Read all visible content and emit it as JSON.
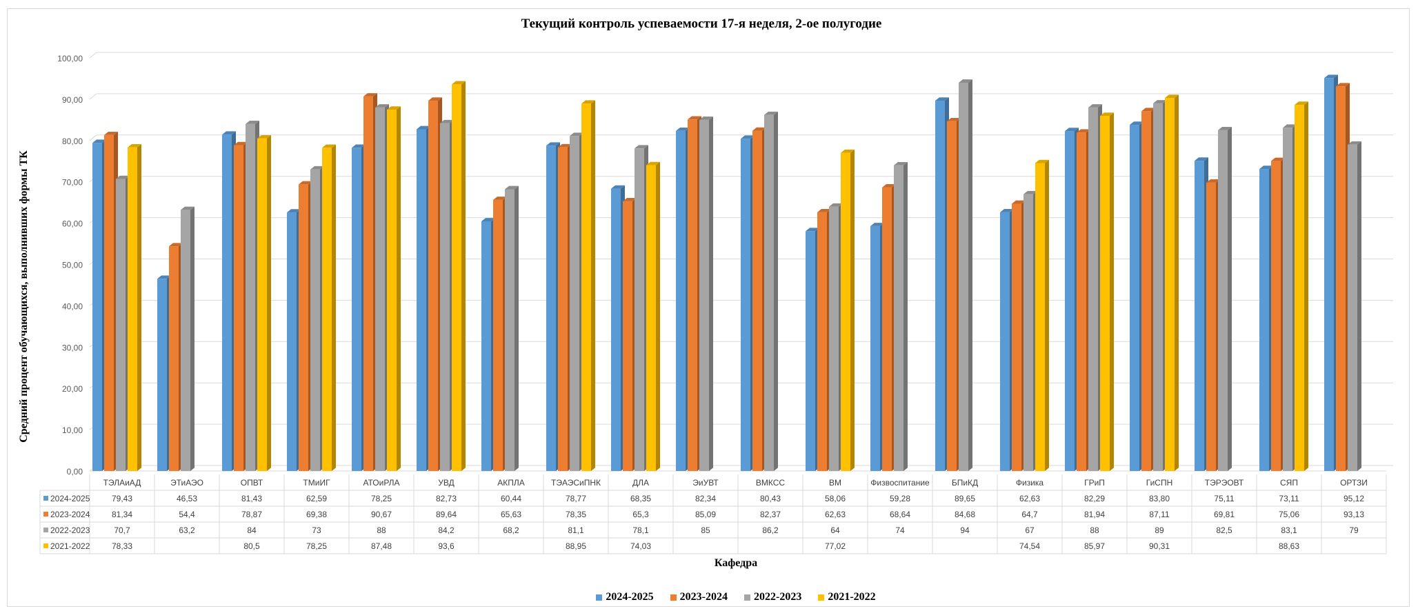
{
  "chart_data": {
    "type": "bar",
    "title": "Текущий контроль успеваемости 17-я неделя, 2-ое полугодие",
    "xlabel": "Кафедра",
    "ylabel": "Средний процент обучающихся, выполнивших формы ТК",
    "ylim": [
      0,
      100
    ],
    "ytick_step": 10,
    "ytick_labels": [
      "0,00",
      "10,00",
      "20,00",
      "30,00",
      "40,00",
      "50,00",
      "60,00",
      "70,00",
      "80,00",
      "90,00",
      "100,00"
    ],
    "grid": true,
    "legend_position": "bottom",
    "has_data_table": true,
    "categories": [
      "ТЭЛАиАД",
      "ЭТиАЭО",
      "ОПВТ",
      "ТМиИГ",
      "АТОиРЛА",
      "УВД",
      "АКПЛА",
      "ТЭАЭСиПНК",
      "ДЛА",
      "ЭиУВТ",
      "ВМКСС",
      "ВМ",
      "Физвоспитание",
      "БПиКД",
      "Физика",
      "ГРиП",
      "ГиСПН",
      "ТЭРЭОВТ",
      "СЯП",
      "ОРТЗИ"
    ],
    "series": [
      {
        "name": "2024-2025",
        "color": "#5b9bd5",
        "values": [
          79.43,
          46.53,
          81.43,
          62.59,
          78.25,
          82.73,
          60.44,
          78.77,
          68.35,
          82.34,
          80.43,
          58.06,
          59.28,
          89.65,
          62.63,
          82.29,
          83.8,
          75.11,
          73.11,
          95.12
        ],
        "labels": [
          "79,43",
          "46,53",
          "81,43",
          "62,59",
          "78,25",
          "82,73",
          "60,44",
          "78,77",
          "68,35",
          "82,34",
          "80,43",
          "58,06",
          "59,28",
          "89,65",
          "62,63",
          "82,29",
          "83,80",
          "75,11",
          "73,11",
          "95,12"
        ]
      },
      {
        "name": "2023-2024",
        "color": "#ed7d31",
        "values": [
          81.34,
          54.4,
          78.87,
          69.38,
          90.67,
          89.64,
          65.63,
          78.35,
          65.3,
          85.09,
          82.37,
          62.63,
          68.64,
          84.68,
          64.7,
          81.94,
          87.11,
          69.81,
          75.06,
          93.13
        ],
        "labels": [
          "81,34",
          "54,4",
          "78,87",
          "69,38",
          "90,67",
          "89,64",
          "65,63",
          "78,35",
          "65,3",
          "85,09",
          "82,37",
          "62,63",
          "68,64",
          "84,68",
          "64,7",
          "81,94",
          "87,11",
          "69,81",
          "75,06",
          "93,13"
        ]
      },
      {
        "name": "2022-2023",
        "color": "#a5a5a5",
        "values": [
          70.7,
          63.2,
          84,
          73,
          88,
          84.2,
          68.2,
          81.1,
          78.1,
          85,
          86.2,
          64,
          74,
          94,
          67,
          88,
          89,
          82.5,
          83.1,
          79
        ],
        "labels": [
          "70,7",
          "63,2",
          "84",
          "73",
          "88",
          "84,2",
          "68,2",
          "81,1",
          "78,1",
          "85",
          "86,2",
          "64",
          "74",
          "94",
          "67",
          "88",
          "89",
          "82,5",
          "83,1",
          "79"
        ]
      },
      {
        "name": "2021-2022",
        "color": "#ffc000",
        "values": [
          78.33,
          null,
          80.5,
          78.25,
          87.48,
          93.6,
          null,
          88.95,
          74.03,
          null,
          null,
          77.02,
          null,
          null,
          74.54,
          85.97,
          90.31,
          null,
          88.63,
          null
        ],
        "labels": [
          "78,33",
          "",
          "80,5",
          "78,25",
          "87,48",
          "93,6",
          "",
          "88,95",
          "74,03",
          "",
          "",
          "77,02",
          "",
          "",
          "74,54",
          "85,97",
          "90,31",
          "",
          "88,63",
          ""
        ]
      }
    ]
  }
}
